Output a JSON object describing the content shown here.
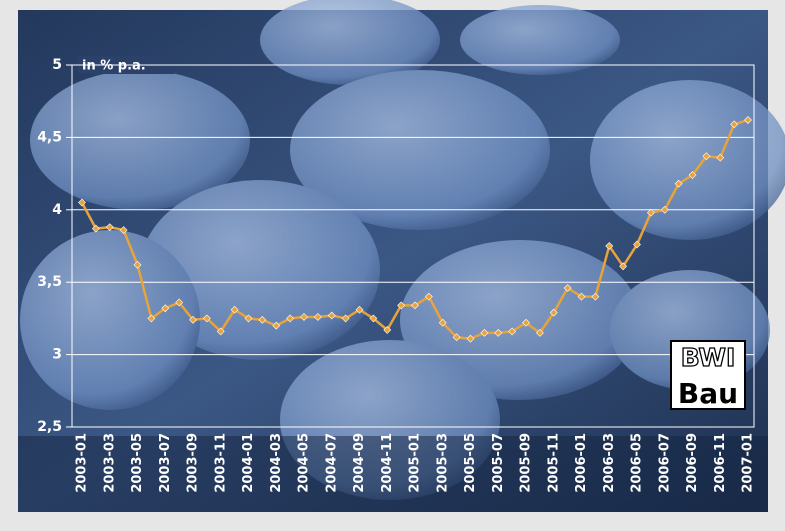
{
  "chart_data": {
    "type": "line",
    "y_label": "in % p.a.",
    "categories": [
      "2003-01",
      null,
      "2003-03",
      null,
      "2003-05",
      null,
      "2003-07",
      null,
      "2003-09",
      null,
      "2003-11",
      null,
      "2004-01",
      null,
      "2004-03",
      null,
      "2004-05",
      null,
      "2004-07",
      null,
      "2004-09",
      null,
      "2004-11",
      null,
      "2005-01",
      null,
      "2005-03",
      null,
      "2005-05",
      null,
      "2005-07",
      null,
      "2005-09",
      null,
      "2005-11",
      null,
      "2006-01",
      null,
      "2006-03",
      null,
      "2006-05",
      null,
      "2006-07",
      null,
      "2006-09",
      null,
      "2006-11",
      null,
      "2007-01"
    ],
    "values": [
      4.05,
      3.87,
      3.88,
      3.86,
      3.62,
      3.25,
      3.32,
      3.36,
      3.24,
      3.25,
      3.16,
      3.31,
      3.25,
      3.24,
      3.2,
      3.25,
      3.26,
      3.26,
      3.27,
      3.25,
      3.31,
      3.25,
      3.17,
      3.34,
      3.34,
      3.4,
      3.22,
      3.12,
      3.11,
      3.15,
      3.15,
      3.16,
      3.22,
      3.15,
      3.29,
      3.46,
      3.4,
      3.4,
      3.75,
      3.61,
      3.76,
      3.98,
      4.0,
      4.18,
      4.24,
      4.37,
      4.36,
      4.59,
      4.62
    ],
    "color": "#e8a33a",
    "ylim": [
      2.5,
      5
    ],
    "yticks": [
      {
        "value": 2.5,
        "label": "2,5"
      },
      3,
      {
        "value": 3.5,
        "label": "3,5"
      },
      4,
      {
        "value": 4.5,
        "label": "4,5"
      },
      5
    ],
    "grid": true
  },
  "logo": {
    "line1": "BWI",
    "line2": "Bau"
  }
}
